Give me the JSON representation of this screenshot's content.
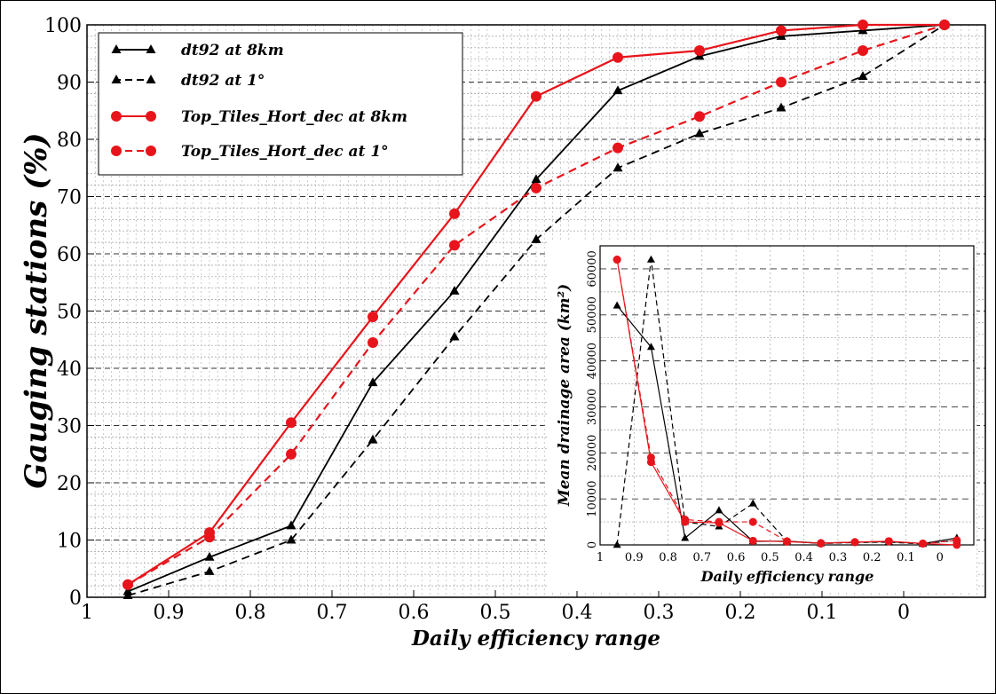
{
  "chart_data": [
    {
      "type": "line",
      "title": "",
      "xlabel": "Daily efficiency range",
      "ylabel": "Gauging stations (%)",
      "xlim": [
        1,
        -0.1
      ],
      "ylim": [
        0,
        100
      ],
      "x_ticks": [
        "1",
        "0.9",
        "0.8",
        "0.7",
        "0.6",
        "0.5",
        "0.4",
        "0.3",
        "0.2",
        "0.1",
        "0"
      ],
      "y_ticks": [
        "0",
        "10",
        "20",
        "30",
        "40",
        "50",
        "60",
        "70",
        "80",
        "90",
        "100"
      ],
      "grid": true,
      "legend_position": "top-left",
      "x": [
        0.95,
        0.85,
        0.75,
        0.65,
        0.55,
        0.45,
        0.35,
        0.25,
        0.15,
        0.05,
        -0.05
      ],
      "series": [
        {
          "name": "dt92 at 8km",
          "color": "#000000",
          "dash": false,
          "marker": "triangle",
          "values": [
            1,
            7,
            12.5,
            37.5,
            53.5,
            73,
            88.5,
            94.5,
            98,
            99,
            100
          ]
        },
        {
          "name": "dt92 at 1°",
          "color": "#000000",
          "dash": true,
          "marker": "triangle",
          "values": [
            0.3,
            4.5,
            10,
            27.5,
            45.5,
            62.5,
            75,
            81,
            85.5,
            91,
            100
          ]
        },
        {
          "name": "Top_Tiles_Hort_dec at 8km",
          "color": "#e8141b",
          "dash": false,
          "marker": "circle",
          "values": [
            2.2,
            11.3,
            30.5,
            49,
            67,
            87.5,
            94.3,
            95.5,
            99,
            100,
            100
          ]
        },
        {
          "name": "Top_Tiles_Hort_dec at 1°",
          "color": "#e8141b",
          "dash": true,
          "marker": "circle",
          "values": [
            2.2,
            10.5,
            25,
            44.5,
            61.5,
            71.5,
            78.5,
            84,
            90,
            95.5,
            100
          ]
        }
      ]
    },
    {
      "type": "line",
      "title": "",
      "xlabel": "Daily efficiency range",
      "ylabel": "Mean drainage area (km²)",
      "xlim": [
        1,
        -0.1
      ],
      "ylim": [
        0,
        65000
      ],
      "x_ticks": [
        "1",
        "0.9",
        "0.8",
        "0.7",
        "0.6",
        "0.5",
        "0.4",
        "0.3",
        "0.2",
        "0.1",
        "0"
      ],
      "y_ticks": [
        "0",
        "10000",
        "20000",
        "30000",
        "40000",
        "50000",
        "60000"
      ],
      "grid": true,
      "x": [
        0.95,
        0.85,
        0.75,
        0.65,
        0.55,
        0.45,
        0.35,
        0.25,
        0.15,
        0.05,
        -0.05
      ],
      "series": [
        {
          "name": "dt92 at 8km",
          "color": "#000000",
          "dash": false,
          "marker": "triangle",
          "values": [
            52000,
            43000,
            1500,
            7500,
            800,
            800,
            400,
            600,
            700,
            300,
            1500
          ]
        },
        {
          "name": "dt92 at 1°",
          "color": "#000000",
          "dash": true,
          "marker": "triangle",
          "values": [
            0,
            62000,
            5000,
            4000,
            9000,
            800,
            300,
            500,
            600,
            200,
            1000
          ]
        },
        {
          "name": "Top_Tiles_Hort_dec at 8km",
          "color": "#e8141b",
          "dash": false,
          "marker": "circle",
          "values": [
            62000,
            18000,
            5000,
            4800,
            900,
            700,
            400,
            600,
            800,
            300,
            0
          ]
        },
        {
          "name": "Top_Tiles_Hort_dec at 1°",
          "color": "#e8141b",
          "dash": true,
          "marker": "circle",
          "values": [
            62000,
            19000,
            5500,
            5000,
            5000,
            800,
            300,
            600,
            800,
            300,
            1000
          ]
        }
      ]
    }
  ]
}
